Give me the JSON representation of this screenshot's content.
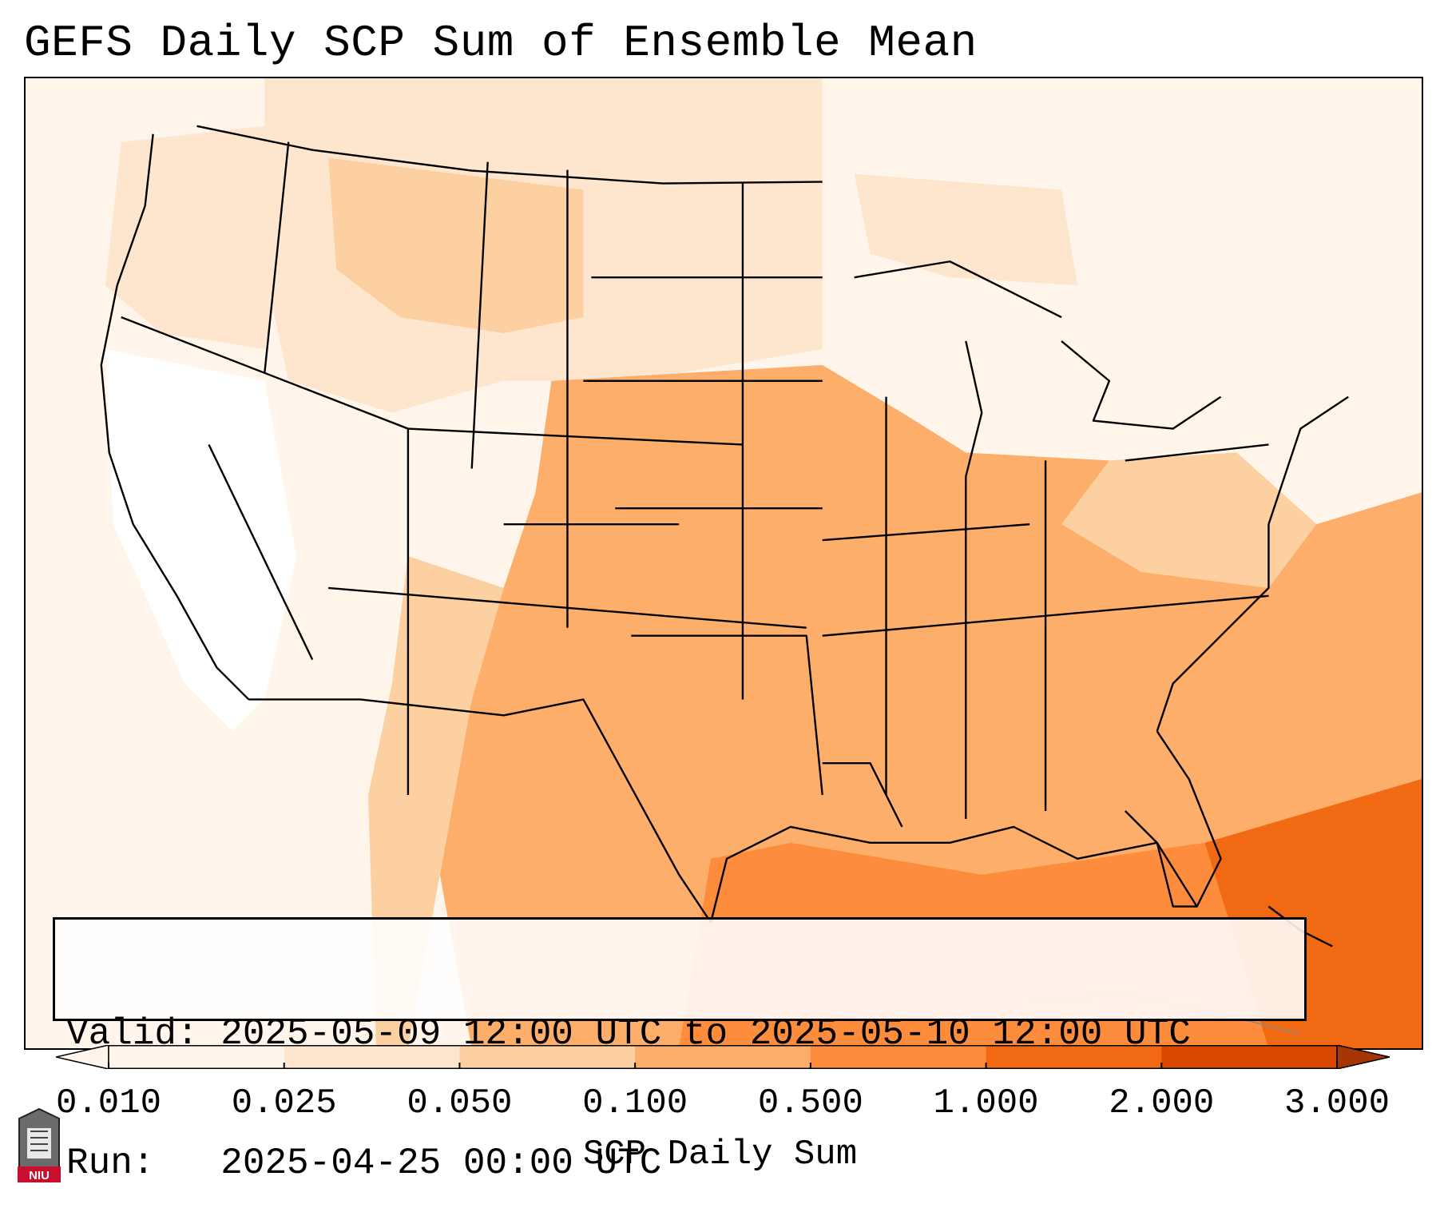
{
  "title": "GEFS Daily SCP Sum of Ensemble Mean",
  "info": {
    "valid_line": "Valid: 2025-05-09 12:00 UTC to 2025-05-10 12:00 UTC",
    "run_line": "Run:   2025-04-25 00:00 UTC"
  },
  "colorbar": {
    "label": "SCP Daily Sum",
    "ticks": [
      "0.010",
      "0.025",
      "0.050",
      "0.100",
      "0.500",
      "1.000",
      "2.000",
      "3.000"
    ],
    "colors": [
      "#fff5eb",
      "#fee6ce",
      "#fdd0a2",
      "#fdae6b",
      "#fd8d3c",
      "#f16913",
      "#d94801"
    ],
    "extend": "both"
  },
  "map": {
    "region": "CONUS",
    "field": "SCP daily sum, ensemble mean",
    "colors": {
      "coast_line": "#000000",
      "low": "#fff5eb",
      "light": "#fee6ce",
      "mid": "#fdd0a2",
      "moderate": "#fdae6b",
      "high": "#fd8d3c",
      "very_high": "#f16913"
    }
  },
  "logo": {
    "text": "NIU",
    "icon": "university-seal-icon"
  }
}
